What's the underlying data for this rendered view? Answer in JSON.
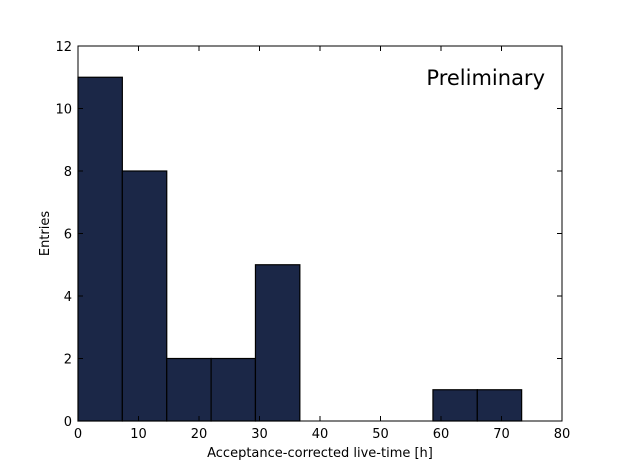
{
  "chart_data": {
    "type": "bar",
    "bins": [
      {
        "x0": 0,
        "x1": 7.33,
        "count": 11
      },
      {
        "x0": 7.33,
        "x1": 14.67,
        "count": 8
      },
      {
        "x0": 14.67,
        "x1": 22.0,
        "count": 2
      },
      {
        "x0": 22.0,
        "x1": 29.33,
        "count": 2
      },
      {
        "x0": 29.33,
        "x1": 36.67,
        "count": 5
      },
      {
        "x0": 36.67,
        "x1": 44.0,
        "count": 0
      },
      {
        "x0": 44.0,
        "x1": 51.33,
        "count": 0
      },
      {
        "x0": 51.33,
        "x1": 58.67,
        "count": 0
      },
      {
        "x0": 58.67,
        "x1": 66.0,
        "count": 1
      },
      {
        "x0": 66.0,
        "x1": 73.33,
        "count": 1
      }
    ],
    "xlabel": "Acceptance-corrected live-time [h]",
    "ylabel": "Entries",
    "xlim": [
      0,
      80
    ],
    "ylim": [
      0,
      12
    ],
    "xticks": [
      0,
      10,
      20,
      30,
      40,
      50,
      60,
      70,
      80
    ],
    "yticks": [
      0,
      2,
      4,
      6,
      8,
      10,
      12
    ],
    "annotation": "Preliminary",
    "grid": false,
    "bar_color": "#1b2747",
    "edge_color": "#000000"
  }
}
